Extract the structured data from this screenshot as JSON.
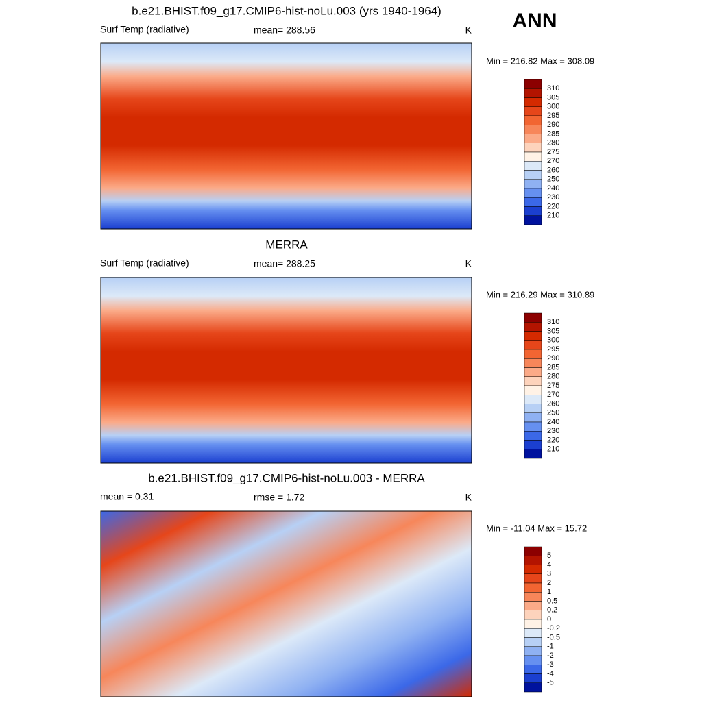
{
  "season": "ANN",
  "panels": [
    {
      "title": "b.e21.BHIST.f09_g17.CMIP6-hist-noLu.003 (yrs 1940-1964)",
      "left_label": "Surf Temp (radiative)",
      "center_label": "mean= 288.56",
      "units": "K",
      "minmax": "Min = 216.82 Max = 308.09",
      "colorbar": {
        "levels": [
          310,
          305,
          300,
          295,
          290,
          285,
          280,
          275,
          270,
          260,
          250,
          240,
          230,
          220,
          210
        ],
        "colors": [
          "#8c0000",
          "#b31400",
          "#d42a00",
          "#e6461a",
          "#f26532",
          "#f7865a",
          "#fbaa88",
          "#fdd3bc",
          "#fff2e6",
          "#dce9f8",
          "#b7d0f5",
          "#8fb1f2",
          "#6690f0",
          "#3b68e8",
          "#1b3fd0",
          "#00129e"
        ]
      }
    },
    {
      "title": "MERRA",
      "left_label": "Surf Temp (radiative)",
      "center_label": "mean= 288.25",
      "units": "K",
      "minmax": "Min = 216.29 Max = 310.89",
      "colorbar": {
        "levels": [
          310,
          305,
          300,
          295,
          290,
          285,
          280,
          275,
          270,
          260,
          250,
          240,
          230,
          220,
          210
        ],
        "colors": [
          "#8c0000",
          "#b31400",
          "#d42a00",
          "#e6461a",
          "#f26532",
          "#f7865a",
          "#fbaa88",
          "#fdd3bc",
          "#fff2e6",
          "#dce9f8",
          "#b7d0f5",
          "#8fb1f2",
          "#6690f0",
          "#3b68e8",
          "#1b3fd0",
          "#00129e"
        ]
      }
    },
    {
      "title": "b.e21.BHIST.f09_g17.CMIP6-hist-noLu.003 - MERRA",
      "left_label": "mean =   0.31",
      "center_label": "rmse =   1.72",
      "units": "K",
      "minmax": "Min = -11.04 Max =  15.72",
      "colorbar": {
        "levels": [
          5,
          4,
          3,
          2,
          1,
          0.5,
          0.2,
          0,
          -0.2,
          -0.5,
          -1,
          -2,
          -3,
          -4,
          -5
        ],
        "colors": [
          "#8c0000",
          "#b31400",
          "#d42a00",
          "#e6461a",
          "#f26532",
          "#f7865a",
          "#fbaa88",
          "#fdd3bc",
          "#fff2e6",
          "#dce9f8",
          "#b7d0f5",
          "#8fb1f2",
          "#6690f0",
          "#3b68e8",
          "#1b3fd0",
          "#00129e"
        ]
      }
    }
  ]
}
